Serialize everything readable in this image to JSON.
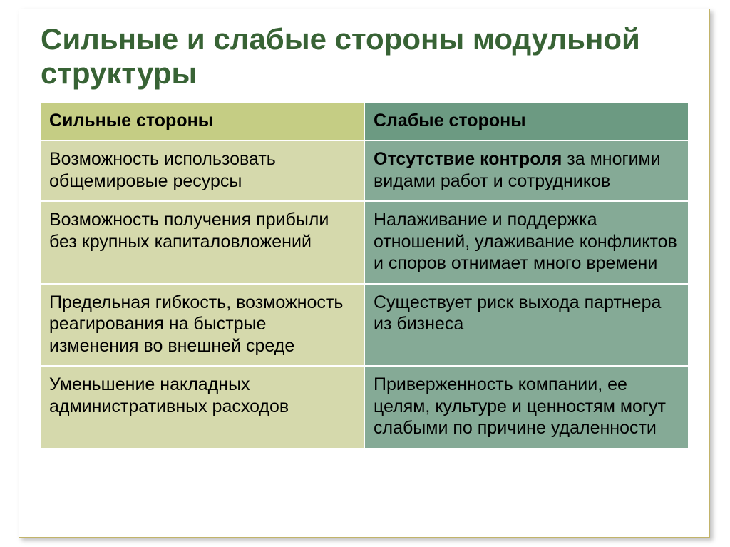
{
  "title": "Сильные и слабые стороны модульной структуры",
  "table": {
    "colors": {
      "left_header_bg": "#c5cd84",
      "right_header_bg": "#6c9a82",
      "left_body_bg": "#d5d9ac",
      "right_body_bg": "#85aa96"
    },
    "header": {
      "left": "Сильные стороны",
      "right": "Слабые стороны"
    },
    "rows": [
      {
        "left": "Возможность использовать общемировые ресурсы",
        "right_bold": "Отсутствие  контроля",
        "right_rest": " за многими видами работ и сотрудников"
      },
      {
        "left": "Возможность получения прибыли без крупных капиталовложений",
        "right": "Налаживание и поддержка отношений, улаживание конфликтов и споров отнимает много времени"
      },
      {
        "left": "Предельная гибкость, возможность реагирования на быстрые изменения во внешней среде",
        "right": "Существует риск выхода партнера из бизнеса"
      },
      {
        "left": "Уменьшение накладных административных расходов",
        "right": "Приверженность компании, ее целям, культуре и ценностям могут слабыми по причине удаленности"
      }
    ]
  }
}
